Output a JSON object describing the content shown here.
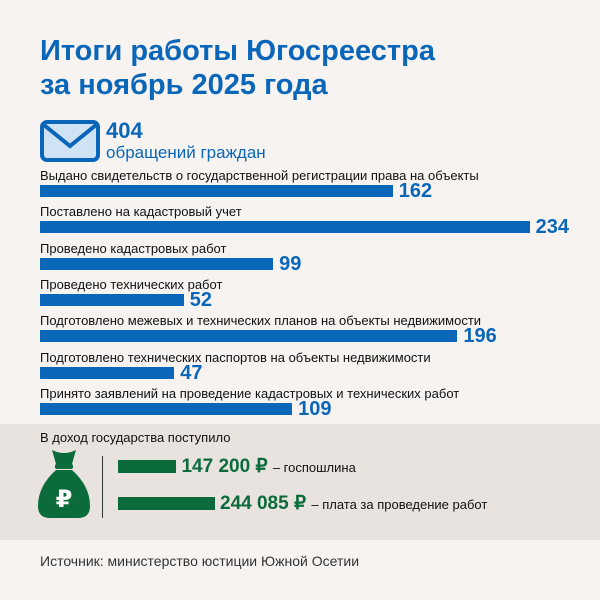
{
  "title_line1": "Итоги работы Югосреестра",
  "title_line2": "за ноябрь 2025 года",
  "total": {
    "value": "404",
    "label": "обращений граждан",
    "icon": "envelope-icon"
  },
  "colors": {
    "blue": "#0a66b8",
    "green": "#0b6b3a",
    "panel": "#e9e3e0"
  },
  "chart_data": [
    {
      "type": "bar",
      "orientation": "horizontal",
      "categories": [
        "Выдано свидетельств о государственной регистрации права на объекты",
        "Поставлено на кадастровый учет",
        "Проведено кадастровых работ",
        "Проведено технических работ",
        "Подготовлено межевых и технических планов на объекты недвижимости",
        "Подготовлено технических паспортов на объекты недвижимости",
        "Принято заявлений на проведение кадастровых и технических работ"
      ],
      "values": [
        162,
        234,
        99,
        52,
        196,
        47,
        109
      ]
    },
    {
      "type": "bar",
      "orientation": "horizontal",
      "title": "В доход государства поступило",
      "categories": [
        "госпошлина",
        "плата за проведение работ"
      ],
      "values": [
        147200,
        244085
      ],
      "labels": [
        "147 200 ₽",
        "244 085 ₽"
      ],
      "unit": "₽"
    }
  ],
  "income_icon": "money-bag-ruble-icon",
  "source": "Источник: министерство юстиции Южной Осетии"
}
